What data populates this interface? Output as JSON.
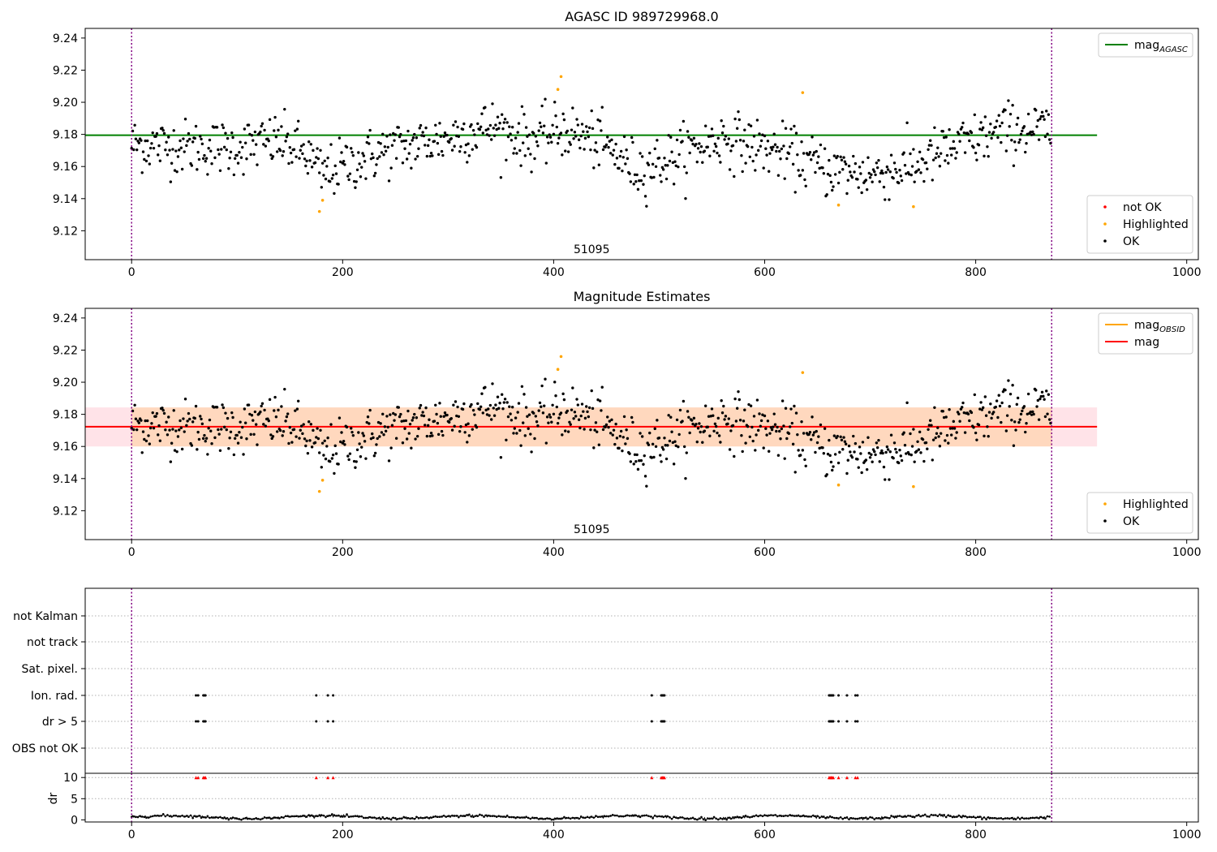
{
  "chart_data": [
    {
      "type": "scatter",
      "title": "AGASC ID 989729968.0",
      "xlabel": "",
      "ylabel": "",
      "xlim": [
        -44,
        1011
      ],
      "ylim": [
        9.102,
        9.246
      ],
      "x_ticks": [
        0,
        200,
        400,
        600,
        800,
        1000
      ],
      "y_ticks": [
        9.12,
        9.14,
        9.16,
        9.18,
        9.2,
        9.22,
        9.24
      ],
      "grid": false,
      "annotation": "51095",
      "annotation_x": 436,
      "vlines": [
        0,
        872
      ],
      "hlines": [
        {
          "name": "mag_AGASC",
          "y": 9.1795,
          "x_end": 915,
          "color": "#008000"
        }
      ],
      "legend": [
        {
          "position": "top-right",
          "entries": [
            {
              "label": "mag",
              "sub": "AGASC",
              "color": "#008000",
              "kind": "line"
            }
          ]
        },
        {
          "position": "bottom-right",
          "entries": [
            {
              "label": "not OK",
              "color": "#ff0000",
              "kind": "point"
            },
            {
              "label": "Highlighted",
              "color": "#ffa500",
              "kind": "point"
            },
            {
              "label": "OK",
              "color": "#000000",
              "kind": "point"
            }
          ]
        }
      ],
      "series": [
        {
          "name": "OK",
          "color": "#000000",
          "n": 872,
          "base": 9.171,
          "model": "noisy time series"
        },
        {
          "name": "Highlighted",
          "color": "#ffa500",
          "x": [
            178,
            181,
            404,
            407,
            636,
            670,
            741
          ],
          "y": [
            9.132,
            9.139,
            9.208,
            9.216,
            9.206,
            9.136,
            9.135
          ]
        },
        {
          "name": "not OK",
          "color": "#ff0000",
          "x": [],
          "y": []
        }
      ]
    },
    {
      "type": "scatter",
      "title": "Magnitude Estimates",
      "xlabel": "",
      "ylabel": "",
      "xlim": [
        -44,
        1011
      ],
      "ylim": [
        9.102,
        9.246
      ],
      "x_ticks": [
        0,
        200,
        400,
        600,
        800,
        1000
      ],
      "y_ticks": [
        9.12,
        9.14,
        9.16,
        9.18,
        9.2,
        9.22,
        9.24
      ],
      "grid": false,
      "annotation": "51095",
      "annotation_x": 436,
      "vlines": [
        0,
        872
      ],
      "bands": [
        {
          "x": [
            -44,
            915
          ],
          "y": [
            9.16,
            9.1843
          ],
          "color": "#ffc0cb",
          "opacity": 0.45
        },
        {
          "x": [
            0,
            872
          ],
          "y": [
            9.16,
            9.1843
          ],
          "color": "#ffa500",
          "opacity": 0.18
        }
      ],
      "hlines": [
        {
          "name": "mag",
          "y": 9.1723,
          "x_start": -44,
          "x_end": 915,
          "color": "#ff0000"
        }
      ],
      "legend": [
        {
          "position": "top-right",
          "entries": [
            {
              "label": "mag",
              "sub": "OBSID",
              "color": "#ffa500",
              "kind": "line"
            },
            {
              "label": "mag",
              "sub": "",
              "color": "#ff0000",
              "kind": "line"
            }
          ]
        },
        {
          "position": "bottom-right",
          "entries": [
            {
              "label": "Highlighted",
              "color": "#ffa500",
              "kind": "point"
            },
            {
              "label": "OK",
              "color": "#000000",
              "kind": "point"
            }
          ]
        }
      ],
      "series": [
        {
          "name": "OK",
          "color": "#000000",
          "n": 872,
          "base": 9.171,
          "model": "noisy time series"
        },
        {
          "name": "Highlighted",
          "color": "#ffa500",
          "x": [
            178,
            181,
            404,
            407,
            636,
            670,
            741
          ],
          "y": [
            9.132,
            9.139,
            9.208,
            9.216,
            9.206,
            9.136,
            9.135
          ]
        }
      ]
    },
    {
      "type": "scatter",
      "title": "",
      "categories": [
        "not Kalman",
        "not track",
        "Sat. pixel.",
        "Ion. rad.",
        "dr > 5",
        "OBS not OK"
      ],
      "xlim": [
        -44,
        1011
      ],
      "vlines": [
        0,
        872
      ],
      "grid": true,
      "flag_events": {
        "Ion. rad.": [
          61,
          63,
          68,
          69,
          70,
          175,
          186,
          191,
          493,
          502,
          503,
          504,
          505,
          661,
          662,
          663,
          664,
          665,
          670,
          678,
          686,
          688
        ],
        "dr > 5": [
          61,
          63,
          68,
          69,
          70,
          175,
          186,
          191,
          493,
          502,
          503,
          504,
          505,
          661,
          662,
          663,
          664,
          665,
          670,
          678,
          686,
          688
        ]
      }
    },
    {
      "type": "line",
      "title": "",
      "ylabel": "dr",
      "xlim": [
        -44,
        1011
      ],
      "ylim": [
        -0.5,
        11
      ],
      "x_ticks": [
        0,
        200,
        400,
        600,
        800,
        1000
      ],
      "y_ticks": [
        0,
        5,
        10
      ],
      "threshold": {
        "y": 10,
        "color": "#ff0000",
        "x": [
          61,
          63,
          68,
          69,
          70,
          175,
          186,
          191,
          493,
          502,
          503,
          504,
          505,
          661,
          662,
          663,
          664,
          665,
          670,
          678,
          686,
          688
        ]
      },
      "series": [
        {
          "name": "dr",
          "color": "#000000",
          "n": 872,
          "range": [
            0.1,
            1.3
          ]
        }
      ],
      "vlines": [
        0,
        872
      ]
    }
  ]
}
